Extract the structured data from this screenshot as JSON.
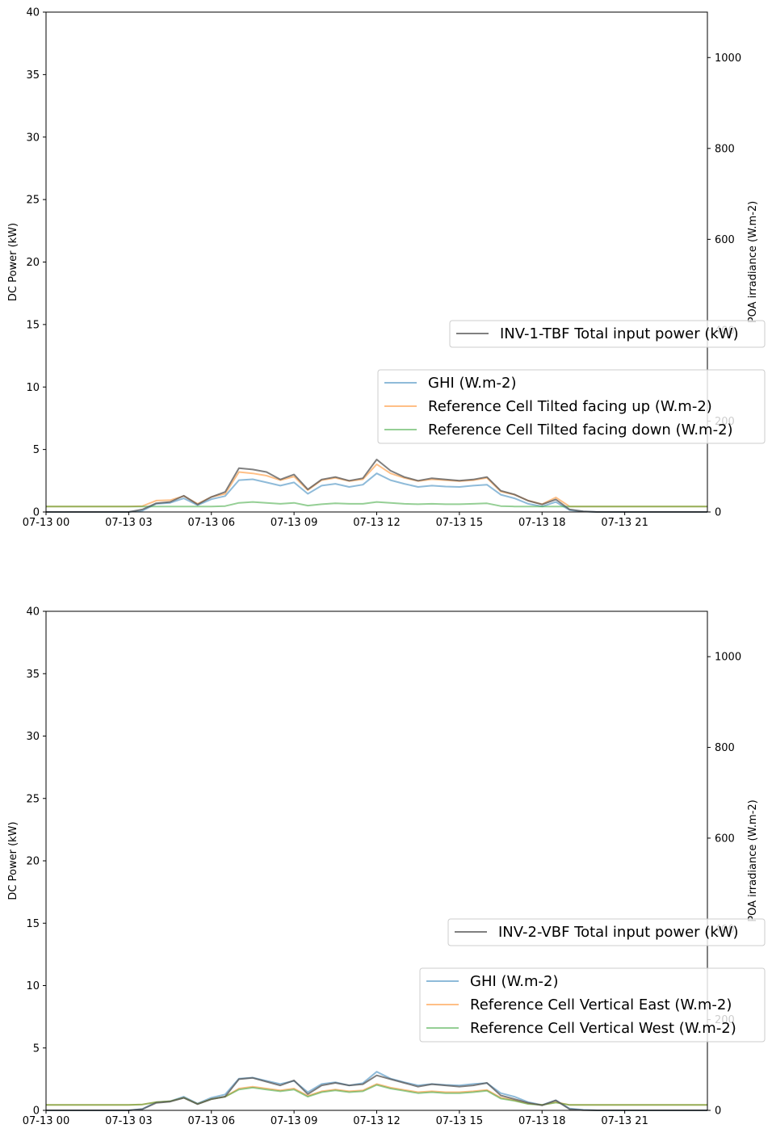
{
  "chart_data": [
    {
      "type": "line",
      "power_axis": {
        "label": "DC Power (kW)",
        "ylim": [
          0,
          40
        ],
        "ticks": [
          0,
          5,
          10,
          15,
          20,
          25,
          30,
          35,
          40
        ]
      },
      "irradiance_axis": {
        "label": "POA irradiance (W.m-2)",
        "ylim": [
          0,
          1100
        ],
        "ticks": [
          0,
          200,
          400,
          600,
          800,
          1000
        ]
      },
      "x_ticks": [
        "07-13 00",
        "07-13 03",
        "07-13 06",
        "07-13 09",
        "07-13 12",
        "07-13 15",
        "07-13 18",
        "07-13 21"
      ],
      "x_range_hours": [
        0,
        24
      ],
      "hours": [
        0,
        3,
        3.5,
        4,
        4.5,
        5,
        5.5,
        6,
        6.5,
        7,
        7.5,
        8,
        8.5,
        9,
        9.5,
        10,
        10.5,
        11,
        11.5,
        12,
        12.5,
        13,
        13.5,
        14,
        14.5,
        15,
        15.5,
        16,
        16.5,
        17,
        17.5,
        18,
        18.5,
        19,
        19.5,
        20,
        24
      ],
      "power_series": {
        "name": "INV-1-TBF Total input power (kW)",
        "color": "#555555",
        "legend_position": "center-right",
        "values": [
          0,
          0,
          0.2,
          0.7,
          0.8,
          1.3,
          0.6,
          1.2,
          1.6,
          3.5,
          3.4,
          3.2,
          2.6,
          3.0,
          1.8,
          2.6,
          2.8,
          2.5,
          2.7,
          4.2,
          3.3,
          2.8,
          2.5,
          2.7,
          2.6,
          2.5,
          2.6,
          2.8,
          1.7,
          1.4,
          0.9,
          0.6,
          1.0,
          0.2,
          0.05,
          0,
          0
        ]
      },
      "irradiance_series": [
        {
          "name": "GHI (W.m-2)",
          "color": "#1f77b4",
          "values": [
            0,
            0,
            3,
            18,
            20,
            30,
            15,
            28,
            35,
            70,
            72,
            65,
            58,
            65,
            40,
            58,
            62,
            55,
            60,
            85,
            70,
            62,
            55,
            58,
            56,
            55,
            58,
            60,
            38,
            30,
            18,
            12,
            22,
            4,
            1,
            0,
            0
          ]
        },
        {
          "name": "Reference Cell Tilted facing up (W.m-2)",
          "color": "#ff7f0e",
          "values": [
            12,
            12,
            13,
            25,
            26,
            35,
            18,
            33,
            40,
            88,
            85,
            80,
            70,
            78,
            48,
            70,
            75,
            68,
            72,
            105,
            85,
            75,
            68,
            72,
            70,
            68,
            70,
            75,
            45,
            38,
            25,
            17,
            32,
            12,
            12,
            12,
            12
          ]
        },
        {
          "name": "Reference Cell Tilted facing down (W.m-2)",
          "color": "#2ca02c",
          "values": [
            12,
            12,
            12,
            12,
            12,
            12,
            12,
            12,
            13,
            20,
            22,
            20,
            18,
            20,
            14,
            17,
            19,
            18,
            18,
            22,
            20,
            18,
            17,
            18,
            17,
            17,
            18,
            19,
            13,
            12,
            12,
            12,
            12,
            12,
            12,
            12,
            12
          ]
        }
      ],
      "legend_position": "center-right"
    },
    {
      "type": "line",
      "power_axis": {
        "label": "DC Power (kW)",
        "ylim": [
          0,
          40
        ],
        "ticks": [
          0,
          5,
          10,
          15,
          20,
          25,
          30,
          35,
          40
        ]
      },
      "irradiance_axis": {
        "label": "POA irradiance (W.m-2)",
        "ylim": [
          0,
          1100
        ],
        "ticks": [
          0,
          200,
          400,
          600,
          800,
          1000
        ]
      },
      "x_ticks": [
        "07-13 00",
        "07-13 03",
        "07-13 06",
        "07-13 09",
        "07-13 12",
        "07-13 15",
        "07-13 18",
        "07-13 21"
      ],
      "x_range_hours": [
        0,
        24
      ],
      "hours": [
        0,
        3,
        3.5,
        4,
        4.5,
        5,
        5.5,
        6,
        6.5,
        7,
        7.5,
        8,
        8.5,
        9,
        9.5,
        10,
        10.5,
        11,
        11.5,
        12,
        12.5,
        13,
        13.5,
        14,
        14.5,
        15,
        15.5,
        16,
        16.5,
        17,
        17.5,
        18,
        18.5,
        19,
        19.5,
        20,
        24
      ],
      "power_series": {
        "name": "INV-2-VBF Total input power (kW)",
        "color": "#555555",
        "legend_position": "center-right",
        "values": [
          0,
          0,
          0.1,
          0.6,
          0.7,
          1.0,
          0.5,
          0.9,
          1.1,
          2.5,
          2.6,
          2.3,
          2.0,
          2.4,
          1.3,
          2.0,
          2.2,
          2.0,
          2.1,
          2.8,
          2.5,
          2.2,
          1.9,
          2.1,
          2.0,
          1.9,
          2.0,
          2.2,
          1.2,
          0.9,
          0.6,
          0.4,
          0.8,
          0.1,
          0.02,
          0,
          0
        ]
      },
      "irradiance_series": [
        {
          "name": "GHI (W.m-2)",
          "color": "#1f77b4",
          "values": [
            0,
            0,
            3,
            18,
            20,
            30,
            15,
            28,
            35,
            70,
            72,
            65,
            58,
            65,
            40,
            58,
            62,
            55,
            60,
            85,
            70,
            62,
            55,
            58,
            56,
            55,
            58,
            60,
            38,
            30,
            18,
            12,
            22,
            4,
            1,
            0,
            0
          ]
        },
        {
          "name": "Reference Cell Vertical East (W.m-2)",
          "color": "#ff7f0e",
          "values": [
            12,
            12,
            13,
            18,
            20,
            28,
            14,
            25,
            30,
            48,
            52,
            48,
            44,
            48,
            32,
            42,
            46,
            42,
            44,
            58,
            50,
            45,
            40,
            42,
            40,
            40,
            42,
            45,
            28,
            22,
            15,
            12,
            18,
            12,
            12,
            12,
            12
          ]
        },
        {
          "name": "Reference Cell Vertical West (W.m-2)",
          "color": "#2ca02c",
          "values": [
            12,
            12,
            13,
            18,
            20,
            28,
            14,
            25,
            30,
            46,
            50,
            46,
            42,
            46,
            30,
            40,
            44,
            40,
            42,
            56,
            48,
            43,
            38,
            40,
            38,
            38,
            40,
            43,
            26,
            21,
            14,
            12,
            17,
            12,
            12,
            12,
            12
          ]
        }
      ],
      "legend_position": "center-right"
    }
  ]
}
